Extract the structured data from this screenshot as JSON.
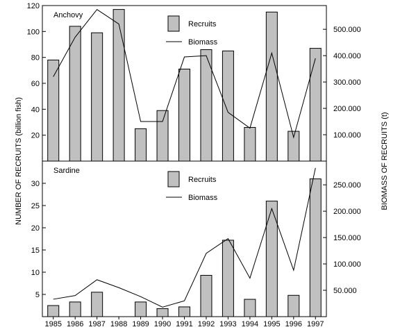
{
  "chart_data": {
    "type": "bar",
    "ylabel_left": "NUMBER OF RECRUITS (billion fish)",
    "ylabel_right": "BIOMASS OF RECRUITS (t)",
    "categories": [
      "1985",
      "1986",
      "1987",
      "1988",
      "1989",
      "1990",
      "1991",
      "1992",
      "1993",
      "1994",
      "1995",
      "1996",
      "1997"
    ],
    "panels": [
      {
        "label": "Anchovy",
        "legend": [
          "Recruits",
          "Biomass"
        ],
        "bar_color": "#c0c0c0",
        "line_color": "#000000",
        "left_ylim": [
          0,
          120
        ],
        "left_ticks": [
          "20",
          "40",
          "60",
          "80",
          "100",
          "120"
        ],
        "left_tick_values": [
          20,
          40,
          60,
          80,
          100,
          120
        ],
        "right_ylim": [
          0,
          590000
        ],
        "right_ticks": [
          "100.000",
          "200.000",
          "300.000",
          "400.000",
          "500.000"
        ],
        "right_tick_values": [
          100000,
          200000,
          300000,
          400000,
          500000
        ],
        "series": [
          {
            "name": "Recruits",
            "kind": "bar",
            "values": [
              78,
              104,
              99,
              117,
              25,
              39,
              71,
              86,
              85,
              26,
              115,
              23,
              87
            ]
          },
          {
            "name": "Biomass",
            "kind": "line",
            "values": [
              320000,
              470000,
              575000,
              520000,
              150000,
              150000,
              395000,
              400000,
              185000,
              125000,
              410000,
              90000,
              390000
            ]
          }
        ]
      },
      {
        "label": "Sardine",
        "legend": [
          "Recruits",
          "Biomass"
        ],
        "bar_color": "#c0c0c0",
        "line_color": "#000000",
        "left_ylim": [
          0,
          35
        ],
        "left_ticks": [
          "5",
          "10",
          "15",
          "20",
          "25",
          "30"
        ],
        "left_tick_values": [
          5,
          10,
          15,
          20,
          25,
          30
        ],
        "right_ylim": [
          0,
          295000
        ],
        "right_ticks": [
          "50.000",
          "100.000",
          "150.000",
          "200.000",
          "250.000"
        ],
        "right_tick_values": [
          50000,
          100000,
          150000,
          200000,
          250000
        ],
        "series": [
          {
            "name": "Recruits",
            "kind": "bar",
            "values": [
              2.5,
              3.3,
              5.5,
              0,
              3.3,
              1.8,
              2.2,
              9.3,
              17.2,
              3.9,
              26,
              4.8,
              31
            ]
          },
          {
            "name": "Biomass",
            "kind": "line",
            "values": [
              33000,
              40000,
              70000,
              55000,
              38000,
              18000,
              30000,
              120000,
              148000,
              73000,
              205000,
              88000,
              282000
            ]
          }
        ]
      }
    ]
  }
}
